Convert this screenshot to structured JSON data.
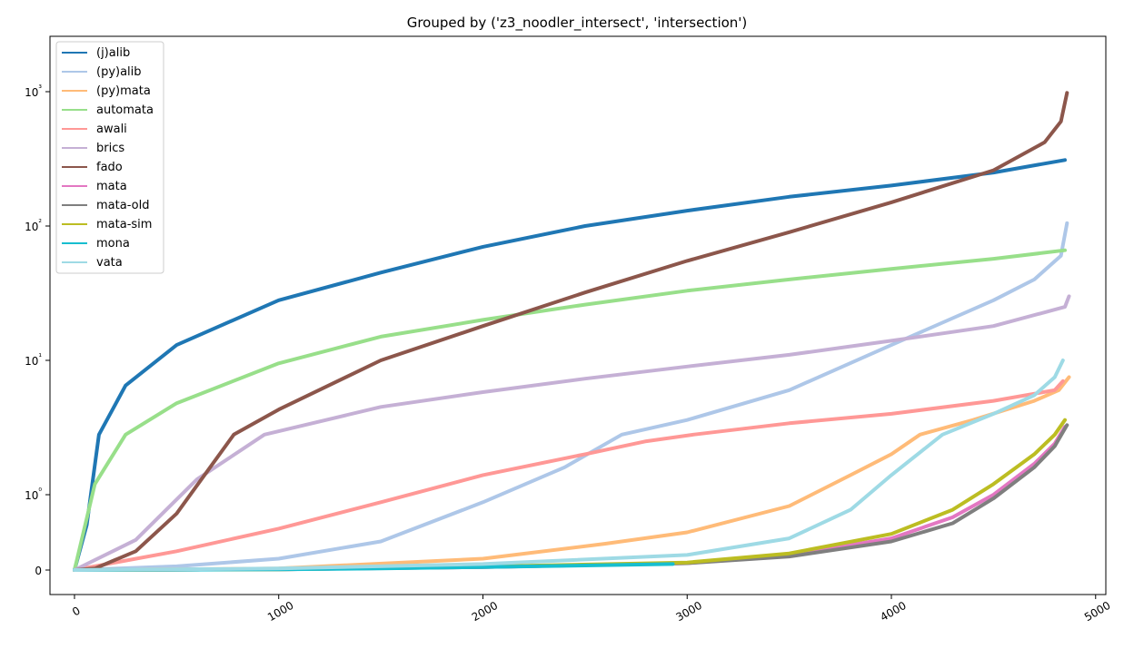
{
  "chart_data": {
    "type": "line",
    "title": "Grouped by ('z3_noodler_intersect', 'intersection')",
    "xlabel": "",
    "ylabel": "",
    "xlim": [
      -120,
      5050
    ],
    "x_ticks": [
      0,
      1000,
      2000,
      3000,
      4000,
      5000
    ],
    "x_tick_labels": [
      "0",
      "1000",
      "2000",
      "3000",
      "4000",
      "5000"
    ],
    "y_scale": "symlog",
    "y_ticks": [
      0,
      1,
      10,
      100,
      1000
    ],
    "y_tick_labels": [
      "0",
      "10⁰",
      "10¹",
      "10²",
      "10³"
    ],
    "grid": false,
    "legend_position": "top-left",
    "series": [
      {
        "name": "(j)alib",
        "color": "#1f77b4",
        "x": [
          0,
          60,
          120,
          250,
          500,
          1000,
          1500,
          2000,
          2500,
          3000,
          3500,
          4000,
          4500,
          4850
        ],
        "y": [
          0,
          0.6,
          2.8,
          6.5,
          13,
          28,
          45,
          70,
          100,
          130,
          165,
          200,
          250,
          310
        ]
      },
      {
        "name": "(py)alib",
        "color": "#aec7e8",
        "x": [
          0,
          500,
          1000,
          1500,
          2000,
          2400,
          2680,
          3000,
          3500,
          4000,
          4500,
          4700,
          4830,
          4860
        ],
        "y": [
          0,
          0.05,
          0.15,
          0.38,
          0.9,
          1.6,
          2.8,
          3.6,
          6,
          13,
          28,
          40,
          60,
          105
        ]
      },
      {
        "name": "(py)mata",
        "color": "#ffbb78",
        "x": [
          0,
          1000,
          2000,
          2600,
          3000,
          3500,
          3800,
          4000,
          4140,
          4400,
          4700,
          4820,
          4870
        ],
        "y": [
          0,
          0.02,
          0.15,
          0.35,
          0.5,
          0.85,
          1.4,
          2,
          2.8,
          3.6,
          5,
          6,
          7.5
        ]
      },
      {
        "name": "automata",
        "color": "#98df8a",
        "x": [
          0,
          100,
          250,
          500,
          1000,
          1500,
          2000,
          2500,
          3000,
          3500,
          4000,
          4500,
          4850
        ],
        "y": [
          0,
          1.2,
          2.8,
          4.8,
          9.5,
          15,
          20,
          26,
          33,
          40,
          48,
          57,
          66
        ]
      },
      {
        "name": "awali",
        "color": "#ff9896",
        "x": [
          0,
          500,
          1000,
          1500,
          2000,
          2500,
          2800,
          3030,
          3500,
          4000,
          4500,
          4800,
          4840
        ],
        "y": [
          0,
          0.25,
          0.55,
          0.9,
          1.4,
          2,
          2.5,
          2.8,
          3.4,
          4,
          5,
          6,
          7
        ]
      },
      {
        "name": "brics",
        "color": "#c5b0d5",
        "x": [
          0,
          300,
          600,
          930,
          1500,
          2000,
          2500,
          3000,
          3500,
          4000,
          4500,
          4850,
          4870
        ],
        "y": [
          0,
          0.4,
          1.3,
          2.8,
          4.5,
          5.8,
          7.3,
          9,
          11,
          14,
          18,
          25,
          30
        ]
      },
      {
        "name": "fado",
        "color": "#8c564b",
        "x": [
          0,
          100,
          300,
          500,
          780,
          1000,
          1500,
          2000,
          2500,
          3000,
          3500,
          4000,
          4500,
          4750,
          4830,
          4860
        ],
        "y": [
          0,
          0.02,
          0.25,
          0.75,
          2.8,
          4.3,
          10,
          18,
          32,
          55,
          90,
          150,
          260,
          420,
          600,
          980
        ]
      },
      {
        "name": "mata",
        "color": "#e377c2",
        "x": [
          0,
          1000,
          2000,
          3000,
          3500,
          4000,
          4300,
          4500,
          4700,
          4800,
          4850
        ],
        "y": [
          0,
          0.01,
          0.04,
          0.09,
          0.2,
          0.42,
          0.7,
          1,
          1.7,
          2.4,
          3.2
        ]
      },
      {
        "name": "mata-old",
        "color": "#7f7f7f",
        "x": [
          0,
          1000,
          2000,
          3000,
          3500,
          4000,
          4300,
          4500,
          4700,
          4800,
          4860
        ],
        "y": [
          0,
          0.01,
          0.04,
          0.09,
          0.18,
          0.38,
          0.62,
          0.95,
          1.6,
          2.3,
          3.3
        ]
      },
      {
        "name": "mata-sim",
        "color": "#bcbd22",
        "x": [
          0,
          1000,
          2000,
          3000,
          3500,
          4000,
          4300,
          4500,
          4700,
          4800,
          4850
        ],
        "y": [
          0,
          0.01,
          0.045,
          0.1,
          0.22,
          0.48,
          0.8,
          1.2,
          2,
          2.8,
          3.6
        ]
      },
      {
        "name": "mona",
        "color": "#17becf",
        "x": [
          0,
          500,
          1000,
          1500,
          2000,
          2500,
          2930
        ],
        "y": [
          0,
          0.005,
          0.01,
          0.02,
          0.04,
          0.06,
          0.08
        ]
      },
      {
        "name": "vata",
        "color": "#9edae5",
        "x": [
          0,
          1000,
          2000,
          3000,
          3500,
          3800,
          4000,
          4250,
          4500,
          4700,
          4800,
          4840
        ],
        "y": [
          0,
          0.02,
          0.08,
          0.2,
          0.42,
          0.8,
          1.4,
          2.8,
          4,
          5.5,
          7.5,
          10
        ]
      }
    ]
  }
}
